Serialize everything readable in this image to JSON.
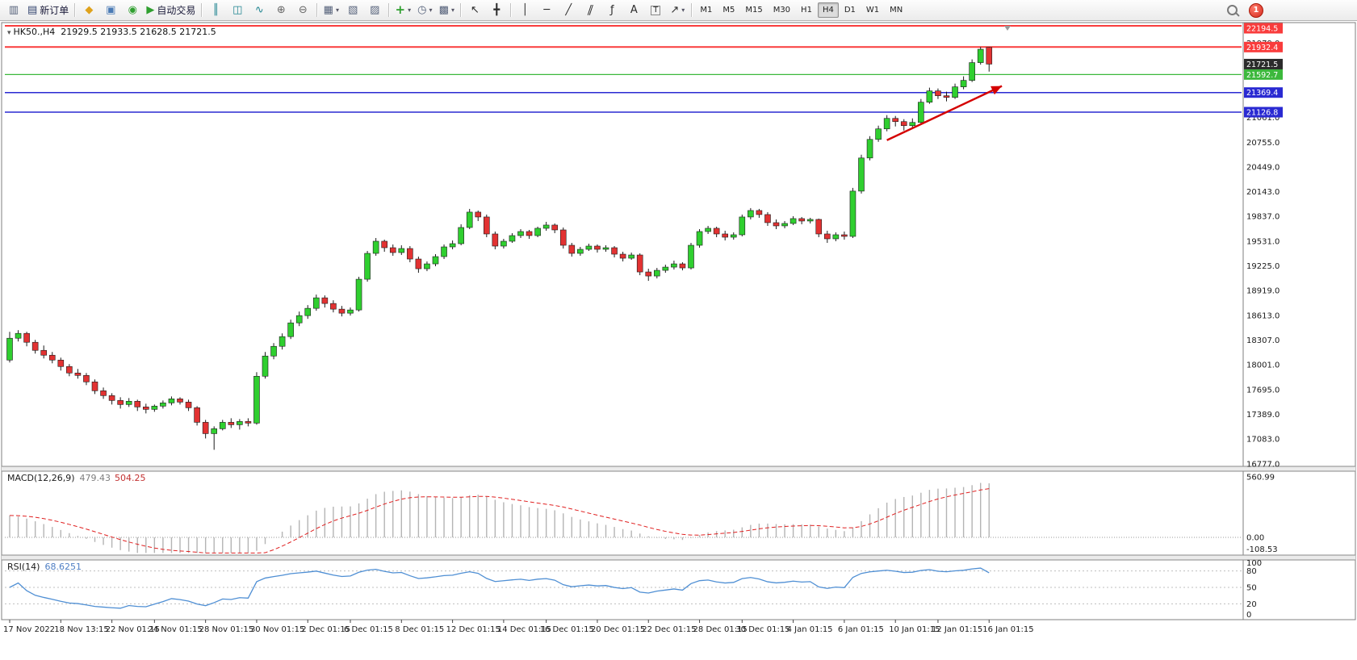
{
  "toolbar": {
    "new_order_label": "新订单",
    "autotrading_label": "自动交易",
    "timeframes": [
      "M1",
      "M5",
      "M15",
      "M30",
      "H1",
      "H4",
      "D1",
      "W1",
      "MN"
    ],
    "active_timeframe": "H4",
    "notification_badge": "1",
    "icons": {
      "new_chart": "▥",
      "new_order": "▤",
      "community": "◆",
      "profile": "▣",
      "web": "◉",
      "autotrading": "▶",
      "chart_bars": "║",
      "chart_candles": "◫",
      "chart_line": "∿",
      "zoom_in": "⊕",
      "zoom_out": "⊖",
      "tile": "▦",
      "arrange_a": "▧",
      "arrange_b": "▨",
      "add_indicator": "+",
      "period": "◷",
      "template": "▩",
      "cursor": "↖",
      "crosshair": "╋",
      "vline": "│",
      "hline": "─",
      "trendline": "╱",
      "channel": "∥",
      "fibonacci": "ƒ",
      "text": "A",
      "label": "T",
      "shapes": "↗",
      "dropdown": "▾",
      "symbol_menu": "▾"
    }
  },
  "chart_header": {
    "symbol_period": "HK50.,H4",
    "ohlc": "21929.5 21933.5 21628.5 21721.5"
  },
  "hlines": [
    {
      "price": 22194.5,
      "color": "#f93c3c",
      "width": 2
    },
    {
      "price": 21932.4,
      "color": "#f93c3c",
      "width": 2
    },
    {
      "price": 21592.7,
      "color": "#3cb83c",
      "width": 1.2
    },
    {
      "price": 21369.4,
      "color": "#2a2ad2",
      "width": 1.5
    },
    {
      "price": 21126.8,
      "color": "#2a2ad2",
      "width": 1.5
    }
  ],
  "current_price_tag": {
    "price": 21721.5,
    "bg": "#2b2b2b",
    "fg": "#ffffff"
  },
  "annotations": {
    "trend_arrow": {
      "from_bar": 103,
      "from_price": 20780,
      "to_bar": 116.5,
      "to_price": 21450,
      "color": "#d40000"
    }
  },
  "chart_data": [
    {
      "type": "candlestick",
      "title": "HK50.,H4",
      "symbol": "HK50",
      "timeframe": "H4",
      "ylim": [
        16745,
        22215
      ],
      "y_ticks": [
        21979,
        21673,
        21367,
        21061,
        20755,
        20449,
        20143,
        19837,
        19531,
        19225,
        18919,
        18613,
        18307,
        18001,
        17695,
        17389,
        17083,
        16777
      ],
      "x_date_labels": [
        "17 Nov 2022",
        "18 Nov 13:15",
        "22 Nov 01:15",
        "24 Nov 01:15",
        "28 Nov 01:15",
        "30 Nov 01:15",
        "2 Dec 01:15",
        "6 Dec 01:15",
        "8 Dec 01:15",
        "12 Dec 01:15",
        "14 Dec 01:15",
        "16 Dec 01:15",
        "20 Dec 01:15",
        "22 Dec 01:15",
        "28 Dec 01:15",
        "30 Dec 01:15",
        "4 Jan 01:15",
        "6 Jan 01:15",
        "10 Jan 01:15",
        "12 Jan 01:15",
        "16 Jan 01:15"
      ],
      "bull_color": "#2fcf2f",
      "bear_color": "#e23232",
      "wick_color": "#1c1c1c",
      "candles": [
        [
          18060,
          18410,
          18030,
          18330
        ],
        [
          18330,
          18430,
          18290,
          18390
        ],
        [
          18390,
          18410,
          18230,
          18280
        ],
        [
          18280,
          18310,
          18140,
          18180
        ],
        [
          18180,
          18240,
          18080,
          18120
        ],
        [
          18120,
          18160,
          18020,
          18060
        ],
        [
          18060,
          18090,
          17930,
          17980
        ],
        [
          17980,
          18010,
          17860,
          17900
        ],
        [
          17900,
          17950,
          17830,
          17870
        ],
        [
          17870,
          17900,
          17750,
          17790
        ],
        [
          17790,
          17820,
          17640,
          17680
        ],
        [
          17680,
          17720,
          17580,
          17620
        ],
        [
          17620,
          17650,
          17510,
          17560
        ],
        [
          17560,
          17600,
          17460,
          17510
        ],
        [
          17510,
          17590,
          17480,
          17550
        ],
        [
          17550,
          17570,
          17430,
          17480
        ],
        [
          17480,
          17520,
          17400,
          17450
        ],
        [
          17450,
          17510,
          17420,
          17490
        ],
        [
          17490,
          17560,
          17460,
          17530
        ],
        [
          17530,
          17610,
          17500,
          17580
        ],
        [
          17580,
          17600,
          17510,
          17540
        ],
        [
          17540,
          17570,
          17430,
          17470
        ],
        [
          17470,
          17490,
          17250,
          17290
        ],
        [
          17290,
          17320,
          17090,
          17150
        ],
        [
          17150,
          17240,
          16950,
          17210
        ],
        [
          17210,
          17320,
          17190,
          17290
        ],
        [
          17290,
          17340,
          17220,
          17260
        ],
        [
          17260,
          17330,
          17200,
          17300
        ],
        [
          17300,
          17340,
          17240,
          17280
        ],
        [
          17280,
          17910,
          17260,
          17860
        ],
        [
          17860,
          18160,
          17830,
          18110
        ],
        [
          18110,
          18270,
          18070,
          18230
        ],
        [
          18230,
          18390,
          18190,
          18350
        ],
        [
          18350,
          18560,
          18320,
          18520
        ],
        [
          18520,
          18660,
          18480,
          18610
        ],
        [
          18610,
          18740,
          18570,
          18700
        ],
        [
          18700,
          18870,
          18670,
          18830
        ],
        [
          18830,
          18860,
          18710,
          18760
        ],
        [
          18760,
          18800,
          18650,
          18690
        ],
        [
          18690,
          18730,
          18600,
          18640
        ],
        [
          18640,
          18710,
          18610,
          18680
        ],
        [
          18680,
          19090,
          18660,
          19060
        ],
        [
          19060,
          19410,
          19030,
          19380
        ],
        [
          19380,
          19570,
          19350,
          19530
        ],
        [
          19530,
          19550,
          19400,
          19450
        ],
        [
          19450,
          19490,
          19350,
          19390
        ],
        [
          19390,
          19480,
          19360,
          19440
        ],
        [
          19440,
          19470,
          19270,
          19310
        ],
        [
          19310,
          19340,
          19140,
          19190
        ],
        [
          19190,
          19280,
          19160,
          19250
        ],
        [
          19250,
          19370,
          19220,
          19340
        ],
        [
          19340,
          19490,
          19310,
          19460
        ],
        [
          19460,
          19540,
          19430,
          19500
        ],
        [
          19500,
          19740,
          19480,
          19700
        ],
        [
          19700,
          19930,
          19680,
          19890
        ],
        [
          19890,
          19910,
          19780,
          19830
        ],
        [
          19830,
          19860,
          19580,
          19620
        ],
        [
          19620,
          19650,
          19430,
          19470
        ],
        [
          19470,
          19560,
          19440,
          19530
        ],
        [
          19530,
          19630,
          19510,
          19600
        ],
        [
          19600,
          19680,
          19570,
          19650
        ],
        [
          19650,
          19670,
          19560,
          19600
        ],
        [
          19600,
          19710,
          19580,
          19690
        ],
        [
          19690,
          19770,
          19660,
          19730
        ],
        [
          19730,
          19750,
          19630,
          19670
        ],
        [
          19670,
          19700,
          19440,
          19480
        ],
        [
          19480,
          19510,
          19340,
          19380
        ],
        [
          19380,
          19460,
          19350,
          19430
        ],
        [
          19430,
          19500,
          19410,
          19470
        ],
        [
          19470,
          19490,
          19390,
          19430
        ],
        [
          19430,
          19480,
          19400,
          19450
        ],
        [
          19450,
          19470,
          19330,
          19370
        ],
        [
          19370,
          19400,
          19280,
          19320
        ],
        [
          19320,
          19390,
          19300,
          19360
        ],
        [
          19360,
          19380,
          19110,
          19150
        ],
        [
          19150,
          19190,
          19040,
          19100
        ],
        [
          19100,
          19200,
          19070,
          19170
        ],
        [
          19170,
          19240,
          19140,
          19210
        ],
        [
          19210,
          19290,
          19180,
          19250
        ],
        [
          19250,
          19270,
          19170,
          19200
        ],
        [
          19200,
          19510,
          19180,
          19480
        ],
        [
          19480,
          19680,
          19450,
          19650
        ],
        [
          19650,
          19720,
          19620,
          19690
        ],
        [
          19690,
          19710,
          19580,
          19620
        ],
        [
          19620,
          19660,
          19540,
          19580
        ],
        [
          19580,
          19640,
          19550,
          19610
        ],
        [
          19610,
          19860,
          19590,
          19830
        ],
        [
          19830,
          19940,
          19800,
          19910
        ],
        [
          19910,
          19930,
          19820,
          19860
        ],
        [
          19860,
          19890,
          19720,
          19760
        ],
        [
          19760,
          19800,
          19680,
          19720
        ],
        [
          19720,
          19780,
          19690,
          19750
        ],
        [
          19750,
          19840,
          19730,
          19810
        ],
        [
          19810,
          19830,
          19740,
          19780
        ],
        [
          19780,
          19820,
          19750,
          19800
        ],
        [
          19800,
          19810,
          19580,
          19620
        ],
        [
          19620,
          19660,
          19510,
          19560
        ],
        [
          19560,
          19640,
          19530,
          19610
        ],
        [
          19610,
          19650,
          19550,
          19590
        ],
        [
          19590,
          20190,
          19570,
          20150
        ],
        [
          20150,
          20600,
          20120,
          20560
        ],
        [
          20560,
          20830,
          20530,
          20790
        ],
        [
          20790,
          20960,
          20760,
          20920
        ],
        [
          20920,
          21090,
          20890,
          21050
        ],
        [
          21050,
          21080,
          20950,
          21010
        ],
        [
          21010,
          21040,
          20900,
          20960
        ],
        [
          20960,
          21050,
          20930,
          21000
        ],
        [
          21000,
          21290,
          20980,
          21250
        ],
        [
          21250,
          21430,
          21230,
          21390
        ],
        [
          21390,
          21420,
          21290,
          21330
        ],
        [
          21330,
          21380,
          21260,
          21310
        ],
        [
          21310,
          21480,
          21290,
          21440
        ],
        [
          21440,
          21570,
          21410,
          21520
        ],
        [
          21520,
          21780,
          21500,
          21740
        ],
        [
          21740,
          21935,
          21715,
          21905
        ],
        [
          21929.5,
          21933.5,
          21628.5,
          21721.5
        ]
      ]
    },
    {
      "type": "bar",
      "subtype": "macd_histogram",
      "title": "MACD(12,26,9)",
      "derived_from": "candles",
      "params": [
        12,
        26,
        9
      ],
      "current_values": [
        479.43,
        504.25
      ],
      "value_histogram": "479.43",
      "value_signal": "504.25",
      "y_ticks": [
        560.99,
        0,
        -108.53
      ],
      "histogram_color": "#b4b4b4",
      "signal_color": "#e02020"
    },
    {
      "type": "line",
      "subtype": "rsi",
      "title": "RSI(14)",
      "derived_from": "candles",
      "period": 14,
      "current_value": 68.6251,
      "display_value": "68.6251",
      "y_ticks": [
        100,
        80,
        50,
        20,
        0
      ],
      "levels": [
        80,
        50,
        20
      ],
      "line_color": "#4f8fd4"
    }
  ]
}
